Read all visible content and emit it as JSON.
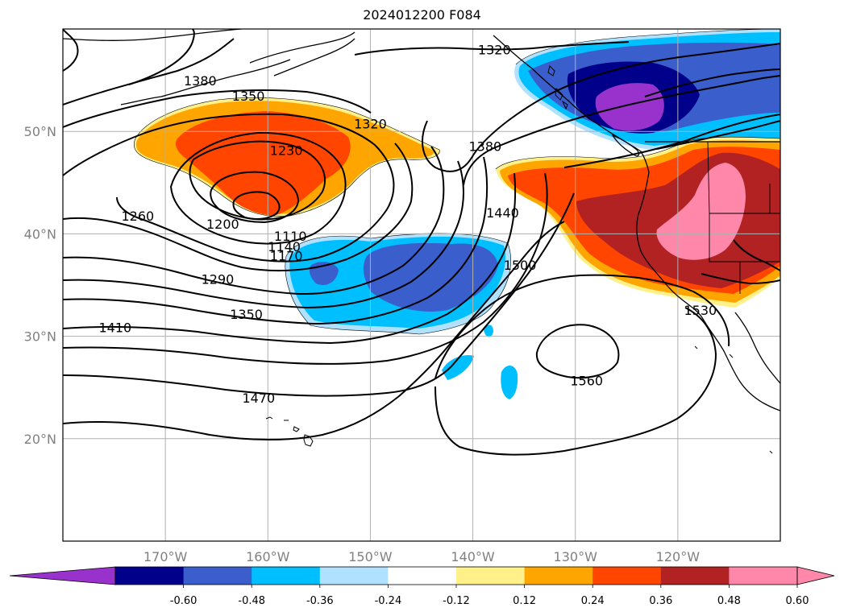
{
  "title": "2024012200 F084",
  "map": {
    "lon_range": [
      -180,
      -110
    ],
    "lat_range": [
      10,
      60
    ],
    "lon_ticks": [
      {
        "lon": -170,
        "label": "170°W"
      },
      {
        "lon": -160,
        "label": "160°W"
      },
      {
        "lon": -150,
        "label": "150°W"
      },
      {
        "lon": -140,
        "label": "140°W"
      },
      {
        "lon": -130,
        "label": "130°W"
      },
      {
        "lon": -120,
        "label": "120°W"
      }
    ],
    "lat_ticks": [
      {
        "lat": 50,
        "label": "50°N"
      },
      {
        "lat": 40,
        "label": "40°N"
      },
      {
        "lat": 30,
        "label": "30°N"
      },
      {
        "lat": 20,
        "label": "20°N"
      }
    ],
    "grid": true,
    "contour_labels": [
      {
        "text": "1380",
        "lon": -166.6,
        "lat": 54.9
      },
      {
        "text": "1350",
        "lon": -161.9,
        "lat": 53.4
      },
      {
        "text": "1320",
        "lon": -137.9,
        "lat": 57.9
      },
      {
        "text": "1320",
        "lon": -150.0,
        "lat": 50.7
      },
      {
        "text": "1230",
        "lon": -158.2,
        "lat": 48.1
      },
      {
        "text": "1380",
        "lon": -138.8,
        "lat": 48.5
      },
      {
        "text": "1260",
        "lon": -172.7,
        "lat": 41.7
      },
      {
        "text": "1200",
        "lon": -164.4,
        "lat": 40.9
      },
      {
        "text": "1440",
        "lon": -137.1,
        "lat": 42.0
      },
      {
        "text": "1110",
        "lon": -157.8,
        "lat": 39.7
      },
      {
        "text": "1140",
        "lon": -158.4,
        "lat": 38.7
      },
      {
        "text": "1170",
        "lon": -158.2,
        "lat": 37.8
      },
      {
        "text": "1500",
        "lon": -135.4,
        "lat": 36.9
      },
      {
        "text": "1290",
        "lon": -164.9,
        "lat": 35.5
      },
      {
        "text": "1530",
        "lon": -117.8,
        "lat": 32.5
      },
      {
        "text": "1350",
        "lon": -162.1,
        "lat": 32.1
      },
      {
        "text": "1410",
        "lon": -174.9,
        "lat": 30.8
      },
      {
        "text": "1560",
        "lon": -128.9,
        "lat": 25.6
      },
      {
        "text": "1470",
        "lon": -160.9,
        "lat": 23.9
      }
    ]
  },
  "colorbar": {
    "ticks": [
      "-0.60",
      "-0.48",
      "-0.36",
      "-0.24",
      "-0.12",
      "0.12",
      "0.24",
      "0.36",
      "0.48",
      "0.60"
    ],
    "colors": {
      "under": "#9932cc",
      "bins": [
        "#00008b",
        "#3a5fcd",
        "#00bfff",
        "#b0e2ff",
        "#ffffff",
        "#fff08a",
        "#ffa500",
        "#ff4500",
        "#b22222",
        "#ff88aa"
      ],
      "over": "#ff88aa"
    }
  },
  "colors": {
    "ocean": "#ffffff",
    "grid": "#b0b0b0",
    "contour": "#000000"
  }
}
